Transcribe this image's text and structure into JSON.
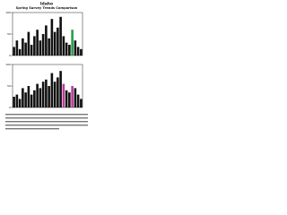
{
  "title": "Idaho",
  "subtitle": "Spring Survey Trends Comparison",
  "chart_data": [
    {
      "type": "bar",
      "categories": [
        null,
        null,
        null,
        null,
        null,
        null,
        null,
        null,
        null,
        null,
        null,
        null,
        null,
        null,
        null,
        null,
        null,
        null,
        null,
        null,
        null,
        null,
        null,
        null
      ],
      "values": [
        20,
        35,
        15,
        40,
        30,
        55,
        25,
        45,
        60,
        35,
        50,
        70,
        40,
        85,
        55,
        65,
        90,
        45,
        30,
        25,
        60,
        35,
        20,
        15
      ],
      "colors": [
        "#111",
        "#111",
        "#111",
        "#111",
        "#111",
        "#111",
        "#111",
        "#111",
        "#111",
        "#111",
        "#111",
        "#111",
        "#111",
        "#111",
        "#111",
        "#111",
        "#111",
        "#111",
        "#111",
        "#111",
        "#2a9d4a",
        "#111",
        "#111",
        "#111"
      ],
      "ylim": [
        0,
        100
      ],
      "yticks": [
        0,
        50,
        100
      ]
    },
    {
      "type": "bar",
      "categories": [
        null,
        null,
        null,
        null,
        null,
        null,
        null,
        null,
        null,
        null,
        null,
        null,
        null,
        null,
        null,
        null,
        null,
        null,
        null,
        null,
        null,
        null,
        null,
        null
      ],
      "values": [
        25,
        30,
        20,
        45,
        35,
        50,
        30,
        40,
        55,
        45,
        60,
        65,
        50,
        80,
        60,
        70,
        85,
        55,
        40,
        35,
        50,
        45,
        30,
        20
      ],
      "colors": [
        "#111",
        "#111",
        "#111",
        "#111",
        "#111",
        "#111",
        "#111",
        "#111",
        "#111",
        "#111",
        "#111",
        "#111",
        "#111",
        "#111",
        "#111",
        "#111",
        "#111",
        "#c0399a",
        "#111",
        "#111",
        "#c0399a",
        "#111",
        "#111",
        "#111"
      ],
      "ylim": [
        0,
        100
      ],
      "yticks": [
        0,
        50,
        100
      ]
    }
  ]
}
